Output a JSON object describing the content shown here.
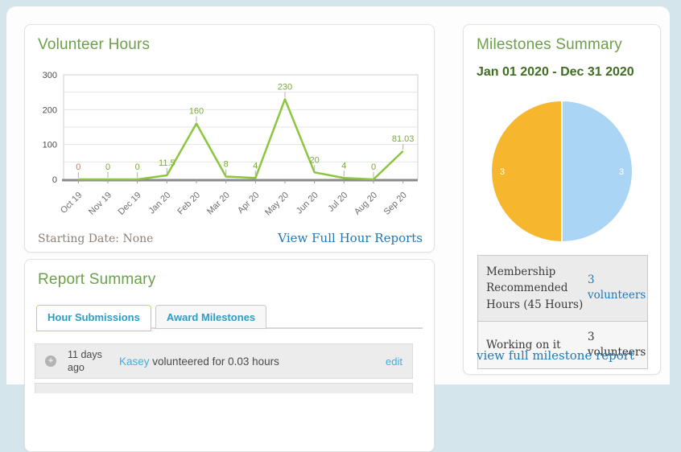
{
  "colors": {
    "title_green": "#6ca04b",
    "date_green": "#3f6d21",
    "serif_link_blue": "#2178b5",
    "tab_blue": "#2d9dc4",
    "light_link_blue": "#42aede",
    "tab_active_border_gold": "#f2c23e",
    "line_green": "#8cc63e",
    "point_label_green": "#79a93e",
    "point_label_orange": "#e2714b",
    "pie_yellow": "#f6b62d",
    "pie_blue": "#abd5f5"
  },
  "volunteer_hours": {
    "title": "Volunteer Hours",
    "starting_date": "Starting Date: None",
    "report_link": "View Full Hour Reports"
  },
  "report_summary": {
    "title": "Report Summary",
    "tabs": [
      {
        "label": "Hour Submissions",
        "active": true
      },
      {
        "label": "Award Milestones",
        "active": false
      }
    ],
    "rows": [
      {
        "time": "11 days ago",
        "user": "Kasey",
        "text": "volunteered for 0.03 hours",
        "action": "edit"
      }
    ]
  },
  "milestones_summary": {
    "title": "Milestones Summary",
    "date_range": "Jan 01 2020 - Dec 31 2020",
    "table": [
      {
        "label": "Membership Recommended Hours (45 Hours)",
        "value": "3 volunteers",
        "is_link": true
      },
      {
        "label": "Working on it",
        "value": "3 volunteers",
        "is_link": false
      }
    ],
    "report_link": "view full milestone report"
  },
  "chart_data": [
    {
      "type": "line",
      "title": "Volunteer Hours",
      "categories": [
        "Oct 19",
        "Nov 19",
        "Dec 19",
        "Jan 20",
        "Feb 20",
        "Mar 20",
        "Apr 20",
        "May 20",
        "Jun 20",
        "Jul 20",
        "Aug 20",
        "Sep 20"
      ],
      "values": [
        0,
        0,
        0,
        11.5,
        160,
        8,
        4,
        230,
        20,
        4,
        0,
        81.03
      ],
      "point_labels": [
        "0",
        "0",
        "0",
        "11.5",
        "160",
        "8",
        "4",
        "230",
        "20",
        "4",
        "0",
        "81.03"
      ],
      "point_label_colors": [
        "#e2714b",
        "#79a93e",
        "#79a93e",
        "#79a93e",
        "#79a93e",
        "#79a93e",
        "#79a93e",
        "#79a93e",
        "#79a93e",
        "#79a93e",
        "#79a93e",
        "#79a93e"
      ],
      "xlabel": "",
      "ylabel": "",
      "ylim": [
        0,
        300
      ],
      "yticks": [
        0,
        100,
        200,
        300
      ],
      "grid_step": 50,
      "grid": true,
      "legend": false,
      "line_color": "#8cc63e"
    },
    {
      "type": "pie",
      "title": "Milestones Summary (Jan 01 2020 - Dec 31 2020)",
      "slices": [
        {
          "name": "Membership Recommended Hours (45 Hours)",
          "value": 3,
          "label": "3",
          "color": "#f6b62d"
        },
        {
          "name": "Working on it",
          "value": 3,
          "label": "3",
          "color": "#abd5f5"
        }
      ],
      "label_color": "#ffffff",
      "legend": false
    }
  ]
}
